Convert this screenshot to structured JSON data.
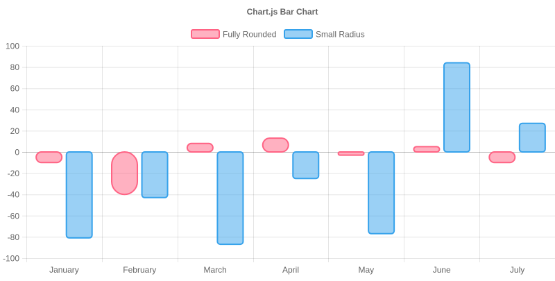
{
  "chart_data": {
    "type": "bar",
    "title": "Chart.js Bar Chart",
    "categories": [
      "January",
      "February",
      "March",
      "April",
      "May",
      "June",
      "July"
    ],
    "series": [
      {
        "name": "Fully Rounded",
        "values": [
          -10,
          -40,
          8,
          13,
          -3,
          5,
          -10
        ],
        "color": "#ff6384",
        "fill": "rgba(255,99,132,0.5)",
        "corner": "fully-rounded"
      },
      {
        "name": "Small Radius",
        "values": [
          -81,
          -43,
          -87,
          -25,
          -77,
          84,
          27
        ],
        "color": "#36a2eb",
        "fill": "rgba(54,162,235,0.5)",
        "corner": "small-radius"
      }
    ],
    "ylim": [
      -100,
      100
    ],
    "yticks": [
      "100",
      "80",
      "60",
      "40",
      "20",
      "0",
      "-20",
      "-40",
      "-60",
      "-80",
      "-100"
    ],
    "grid": true,
    "legend": "top"
  }
}
